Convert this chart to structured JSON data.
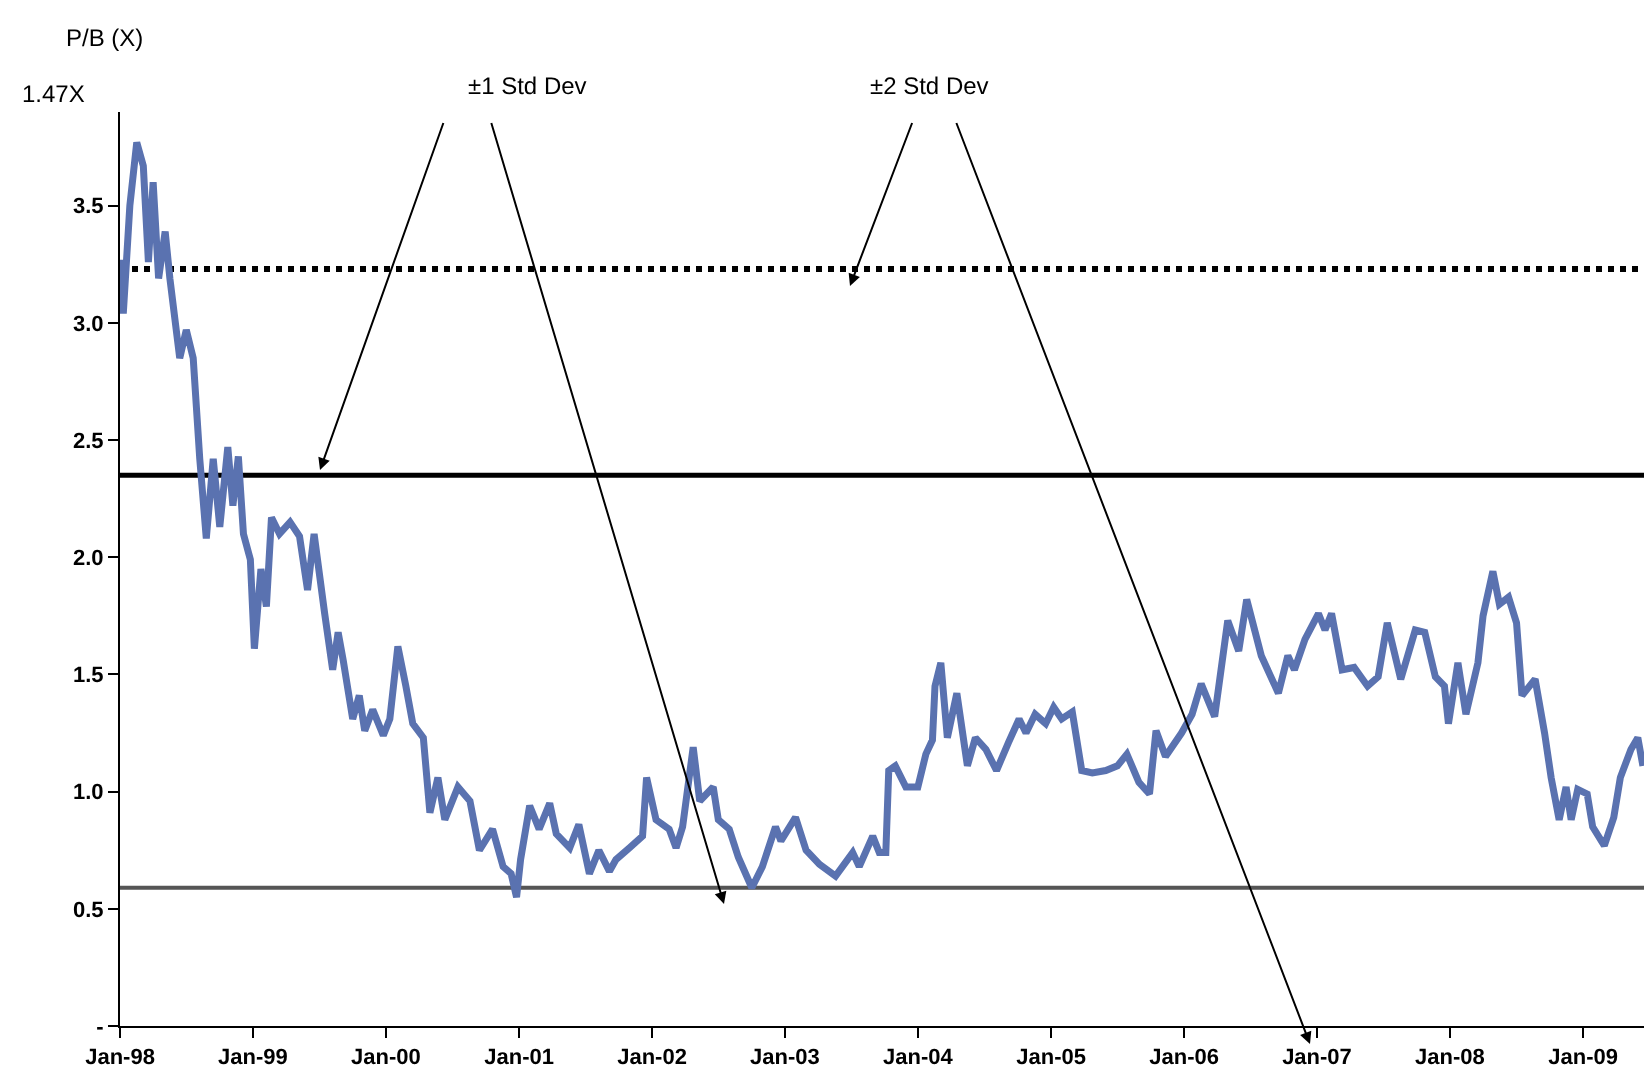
{
  "chart_data": {
    "type": "line",
    "ylabel": "P/B (X)",
    "annotations": [
      "±1 Std Dev",
      "±2 Std Dev",
      "1.47X"
    ],
    "x": [
      "1998-01-01",
      "1998-01-10",
      "1998-01-28",
      "1998-02-16",
      "1998-03-06",
      "1998-03-20",
      "1998-04-02",
      "1998-04-17",
      "1998-05-05",
      "1998-05-18",
      "1998-06-14",
      "1998-07-02",
      "1998-07-21",
      "1998-08-08",
      "1998-08-26",
      "1998-09-14",
      "1998-10-02",
      "1998-10-24",
      "1998-11-07",
      "1998-11-22",
      "1998-12-06",
      "1998-12-25",
      "1999-01-05",
      "1999-01-23",
      "1999-02-07",
      "1999-02-21",
      "1999-03-15",
      "1999-04-13",
      "1999-05-09",
      "1999-05-31",
      "1999-06-18",
      "1999-07-17",
      "1999-08-08",
      "1999-08-23",
      "1999-09-06",
      "1999-10-02",
      "1999-10-20",
      "1999-11-04",
      "1999-11-26",
      "1999-12-25",
      "2000-01-12",
      "2000-02-03",
      "2000-02-25",
      "2000-03-15",
      "2000-04-13",
      "2000-05-01",
      "2000-05-23",
      "2000-06-11",
      "2000-07-17",
      "2000-08-19",
      "2000-09-14",
      "2000-10-20",
      "2000-11-18",
      "2000-12-10",
      "2000-12-25",
      "2001-01-05",
      "2001-01-30",
      "2001-02-25",
      "2001-03-26",
      "2001-04-13",
      "2001-05-20",
      "2001-06-14",
      "2001-07-13",
      "2001-08-08",
      "2001-09-06",
      "2001-09-24",
      "2001-10-31",
      "2001-12-06",
      "2001-12-17",
      "2002-01-12",
      "2002-02-17",
      "2002-03-08",
      "2002-03-26",
      "2002-04-24",
      "2002-05-12",
      "2002-06-18",
      "2002-07-02",
      "2002-08-01",
      "2002-08-26",
      "2002-10-02",
      "2002-10-31",
      "2002-12-06",
      "2002-12-21",
      "2003-01-30",
      "2003-02-28",
      "2003-04-06",
      "2003-05-20",
      "2003-07-06",
      "2003-07-24",
      "2003-08-30",
      "2003-09-17",
      "2003-10-05",
      "2003-10-13",
      "2003-10-31",
      "2003-11-29",
      "2004-01-01",
      "2004-01-23",
      "2004-02-10",
      "2004-02-17",
      "2004-03-04",
      "2004-03-22",
      "2004-04-17",
      "2004-05-16",
      "2004-06-07",
      "2004-07-06",
      "2004-08-04",
      "2004-09-06",
      "2004-10-05",
      "2004-10-24",
      "2004-11-18",
      "2004-12-17",
      "2005-01-08",
      "2005-01-30",
      "2005-02-28",
      "2005-03-26",
      "2005-04-24",
      "2005-05-31",
      "2005-07-02",
      "2005-07-28",
      "2005-08-30",
      "2005-09-28",
      "2005-10-16",
      "2005-11-11",
      "2005-12-25",
      "2006-01-23",
      "2006-02-17",
      "2006-03-26",
      "2006-05-01",
      "2006-05-31",
      "2006-06-22",
      "2006-08-01",
      "2006-09-17",
      "2006-10-13",
      "2006-10-31",
      "2006-11-29",
      "2007-01-05",
      "2007-01-23",
      "2007-02-10",
      "2007-03-11",
      "2007-04-13",
      "2007-05-20",
      "2007-06-18",
      "2007-07-13",
      "2007-08-19",
      "2007-09-28",
      "2007-10-24",
      "2007-11-22",
      "2007-12-17",
      "2007-12-28",
      "2008-01-23",
      "2008-02-14",
      "2008-03-18",
      "2008-04-01",
      "2008-04-28",
      "2008-05-16",
      "2008-06-10",
      "2008-07-02",
      "2008-07-17",
      "2008-08-22",
      "2008-09-17",
      "2008-10-05",
      "2008-10-27",
      "2008-11-15",
      "2008-11-29",
      "2008-12-17",
      "2009-01-12",
      "2009-01-27",
      "2009-02-28",
      "2009-03-26",
      "2009-04-13",
      "2009-05-12",
      "2009-05-31",
      "2009-06-14"
    ],
    "series": [
      {
        "color": "#5a72b0",
        "values": [
          3.27,
          3.04,
          3.5,
          3.77,
          3.67,
          3.26,
          3.6,
          3.19,
          3.39,
          3.19,
          2.85,
          2.97,
          2.85,
          2.42,
          2.08,
          2.42,
          2.13,
          2.47,
          2.22,
          2.43,
          2.1,
          1.99,
          1.61,
          1.95,
          1.79,
          2.17,
          2.1,
          2.15,
          2.09,
          1.86,
          2.1,
          1.76,
          1.52,
          1.68,
          1.56,
          1.31,
          1.41,
          1.26,
          1.35,
          1.24,
          1.31,
          1.62,
          1.45,
          1.29,
          1.23,
          0.91,
          1.06,
          0.88,
          1.02,
          0.96,
          0.75,
          0.84,
          0.68,
          0.65,
          0.55,
          0.71,
          0.94,
          0.84,
          0.95,
          0.82,
          0.76,
          0.86,
          0.65,
          0.75,
          0.66,
          0.71,
          0.76,
          0.81,
          1.06,
          0.88,
          0.84,
          0.76,
          0.85,
          1.19,
          0.96,
          1.02,
          0.88,
          0.84,
          0.72,
          0.59,
          0.68,
          0.85,
          0.79,
          0.89,
          0.75,
          0.69,
          0.64,
          0.74,
          0.68,
          0.81,
          0.74,
          0.74,
          1.09,
          1.11,
          1.02,
          1.02,
          1.16,
          1.22,
          1.45,
          1.55,
          1.23,
          1.42,
          1.11,
          1.23,
          1.18,
          1.09,
          1.21,
          1.31,
          1.25,
          1.33,
          1.29,
          1.36,
          1.31,
          1.34,
          1.09,
          1.08,
          1.09,
          1.11,
          1.16,
          1.04,
          0.99,
          1.26,
          1.15,
          1.25,
          1.33,
          1.46,
          1.32,
          1.73,
          1.6,
          1.82,
          1.58,
          1.42,
          1.58,
          1.52,
          1.65,
          1.76,
          1.69,
          1.76,
          1.52,
          1.53,
          1.45,
          1.49,
          1.72,
          1.48,
          1.69,
          1.68,
          1.49,
          1.45,
          1.29,
          1.55,
          1.33,
          1.55,
          1.75,
          1.94,
          1.8,
          1.83,
          1.72,
          1.41,
          1.48,
          1.25,
          1.06,
          0.88,
          1.02,
          0.88,
          1.01,
          0.99,
          0.85,
          0.77,
          0.89,
          1.06,
          1.18,
          1.23,
          1.11
        ]
      }
    ],
    "xlim": [
      "1998-01-01",
      "2009-06-17"
    ],
    "xticks": [
      {
        "value": "1998-01-01",
        "label": "Jan-98"
      },
      {
        "value": "1999-01-01",
        "label": "Jan-99"
      },
      {
        "value": "2000-01-01",
        "label": "Jan-00"
      },
      {
        "value": "2001-01-01",
        "label": "Jan-01"
      },
      {
        "value": "2002-01-01",
        "label": "Jan-02"
      },
      {
        "value": "2003-01-01",
        "label": "Jan-03"
      },
      {
        "value": "2004-01-01",
        "label": "Jan-04"
      },
      {
        "value": "2005-01-01",
        "label": "Jan-05"
      },
      {
        "value": "2006-01-01",
        "label": "Jan-06"
      },
      {
        "value": "2007-01-01",
        "label": "Jan-07"
      },
      {
        "value": "2008-01-01",
        "label": "Jan-08"
      },
      {
        "value": "2009-01-01",
        "label": "Jan-09"
      }
    ],
    "ylim": [
      0,
      3.9
    ],
    "yticks": [
      {
        "value": 0,
        "label": "-"
      },
      {
        "value": 0.5,
        "label": "0.5"
      },
      {
        "value": 1,
        "label": "1.0"
      },
      {
        "value": 1.5,
        "label": "1.5"
      },
      {
        "value": 2,
        "label": "2.0"
      },
      {
        "value": 2.5,
        "label": "2.5"
      },
      {
        "value": 3,
        "label": "3.0"
      },
      {
        "value": 3.5,
        "label": "3.5"
      }
    ],
    "ref_lines": [
      {
        "axis": "y",
        "value": 3.23,
        "color": "#000000",
        "line_style": "dotted"
      },
      {
        "axis": "y",
        "value": 2.35,
        "color": "#000000",
        "line_style": "solid"
      },
      {
        "axis": "y",
        "value": 0.59,
        "color": "#555555",
        "line_style": "solid"
      }
    ],
    "grid": false,
    "marker": "none",
    "line_style": "solid"
  }
}
